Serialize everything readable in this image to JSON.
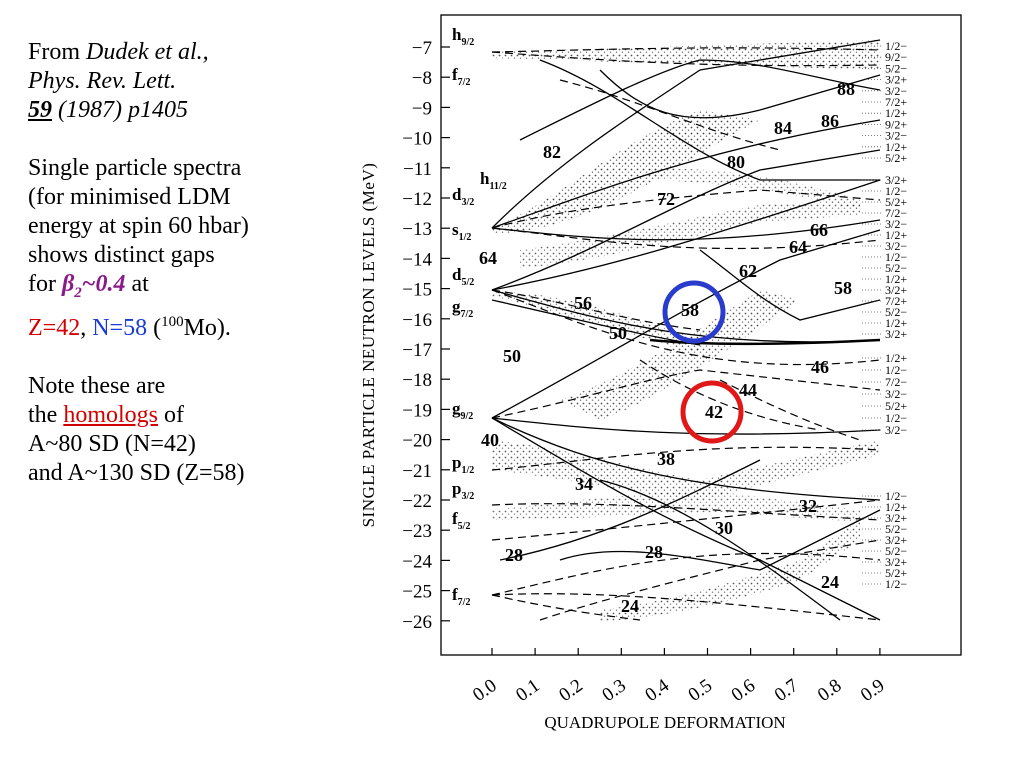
{
  "slide": {
    "ref_from": "From",
    "ref_authors": "Dudek et al.,",
    "ref_journal": "Phys. Rev. Lett.",
    "ref_volume": "59",
    "ref_year_page": "(1987) p1405",
    "desc_line1": "Single particle spectra",
    "desc_line2": "(for minimised LDM",
    "desc_line3": "energy at spin 60 hbar)",
    "desc_line4": "shows distinct gaps",
    "for_word": "for",
    "beta": "β",
    "beta_sub": "2",
    "beta_val": "~0.4",
    "at_word": "at",
    "z_text": "Z=42",
    "comma": ",",
    "n_text": "N=58",
    "mo_open": "(",
    "mo_sup": "100",
    "mo_rest": "Mo).",
    "note_line1": "Note these are",
    "the_word": "the",
    "homologs": "homologs",
    "of_word": "of",
    "note_line3": "A~80 SD (N=42)",
    "note_line4": "and A~130 SD (Z=58)"
  },
  "figure": {
    "ylabel": "SINGLE PARTICLE NEUTRON LEVELS (MeV)",
    "xlabel": "QUADRUPOLE DEFORMATION",
    "y_ticks": [
      "−7",
      "−8",
      "−9",
      "−10",
      "−11",
      "−12",
      "−13",
      "−14",
      "−15",
      "−16",
      "−17",
      "−18",
      "−19",
      "−20",
      "−21",
      "−22",
      "−23",
      "−24",
      "−25",
      "−26"
    ],
    "x_ticks": [
      "0.0",
      "0.1",
      "0.2",
      "0.3",
      "0.4",
      "0.5",
      "0.6",
      "0.7",
      "0.8",
      "0.9"
    ],
    "orbitals": [
      {
        "l": "h",
        "j": "9/2"
      },
      {
        "l": "f",
        "j": "7/2"
      },
      {
        "l": "h",
        "j": "11/2"
      },
      {
        "l": "d",
        "j": "3/2"
      },
      {
        "l": "s",
        "j": "1/2"
      },
      {
        "l": "d",
        "j": "5/2"
      },
      {
        "l": "g",
        "j": "7/2"
      },
      {
        "l": "g",
        "j": "9/2"
      },
      {
        "l": "p",
        "j": "1/2"
      },
      {
        "l": "p",
        "j": "3/2"
      },
      {
        "l": "f",
        "j": "5/2"
      },
      {
        "l": "f",
        "j": "7/2"
      }
    ],
    "gap_numbers": [
      "88",
      "84",
      "86",
      "82",
      "80",
      "72",
      "66",
      "64",
      "64",
      "62",
      "58",
      "56",
      "58",
      "50",
      "50",
      "46",
      "44",
      "42",
      "40",
      "38",
      "34",
      "32",
      "30",
      "28",
      "28",
      "24",
      "24"
    ],
    "right_labels_top": [
      "1/2−",
      "9/2−",
      "5/2−",
      "3/2+",
      "3/2−",
      "7/2+",
      "1/2+",
      "9/2+",
      "3/2−",
      "1/2+",
      "5/2+"
    ],
    "right_labels_mid": [
      "3/2+",
      "1/2−",
      "5/2+",
      "7/2−",
      "3/2−",
      "1/2+",
      "3/2−",
      "1/2−",
      "5/2−",
      "1/2+",
      "3/2+",
      "7/2+",
      "5/2−",
      "1/2+",
      "3/2+"
    ],
    "right_labels_lower": [
      "1/2+",
      "1/2−",
      "7/2−",
      "3/2−",
      "5/2+",
      "1/2−",
      "3/2−"
    ],
    "right_labels_bottom": [
      "1/2−",
      "1/2+",
      "3/2+",
      "5/2−",
      "3/2+",
      "5/2−",
      "3/2+",
      "5/2+",
      "1/2−"
    ],
    "highlight_colors": {
      "n58": "#2a3ccc",
      "z42": "#e01818"
    }
  }
}
